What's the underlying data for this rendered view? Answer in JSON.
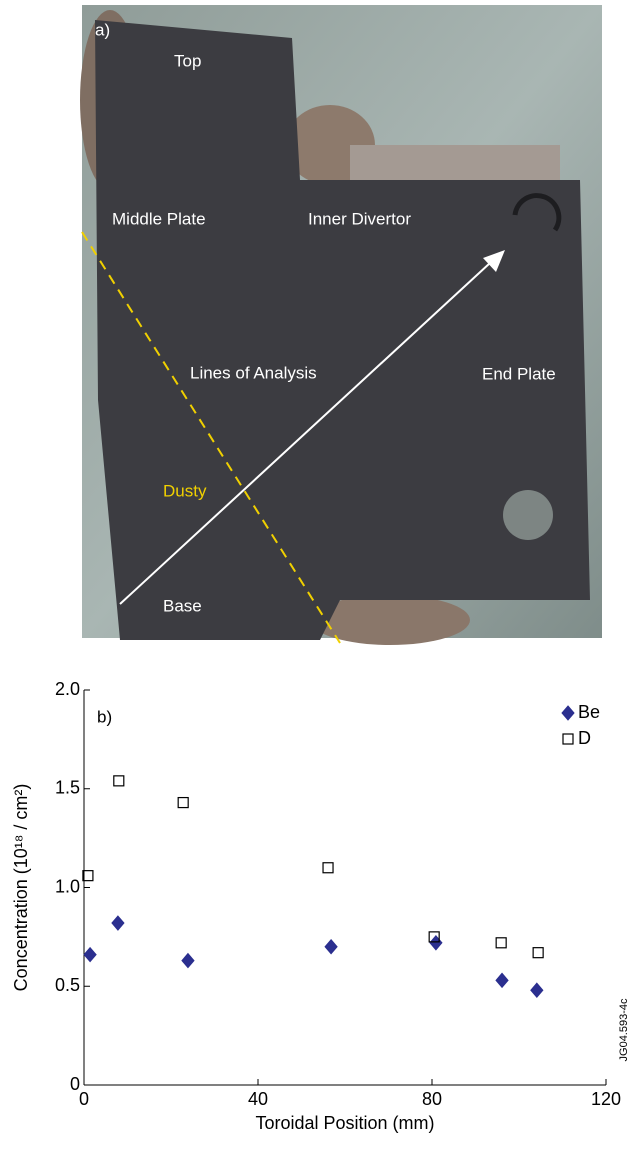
{
  "photo": {
    "panel_label": "a)",
    "top": "Top",
    "middle_plate": "Middle Plate",
    "inner_divertor": "Inner Divertor",
    "lines_of_analysis": "Lines of Analysis",
    "end_plate": "End Plate",
    "dusty": "Dusty",
    "base": "Base"
  },
  "chart_data": {
    "type": "scatter",
    "panel_label": "b)",
    "xlabel": "Toroidal Position (mm)",
    "ylabel": "Concentration (10¹⁸ / cm²)",
    "figure_id": "JG04.593-4c",
    "xlim": [
      0,
      120
    ],
    "xticks": [
      0,
      40,
      80,
      120
    ],
    "ylim": [
      0,
      2
    ],
    "yticks": [
      0,
      0.5,
      {
        "value": 1,
        "label": "1.0"
      },
      1.5,
      {
        "value": 2,
        "label": "2.0"
      }
    ],
    "legend": "upper right",
    "series": [
      {
        "name": "Be",
        "color": "#2b2f8f",
        "marker": "diamond",
        "filled": true,
        "x": [
          1.4,
          7.8,
          23.9,
          56.8,
          80.9,
          96.1,
          104.1
        ],
        "values": [
          0.66,
          0.82,
          0.63,
          0.7,
          0.72,
          0.53,
          0.48
        ]
      },
      {
        "name": "D",
        "color": "#000000",
        "marker": "square",
        "filled": false,
        "x": [
          0.9,
          8.0,
          22.8,
          56.1,
          80.5,
          95.9,
          104.4
        ],
        "values": [
          1.06,
          1.54,
          1.43,
          1.1,
          0.75,
          0.72,
          0.67
        ]
      }
    ]
  }
}
